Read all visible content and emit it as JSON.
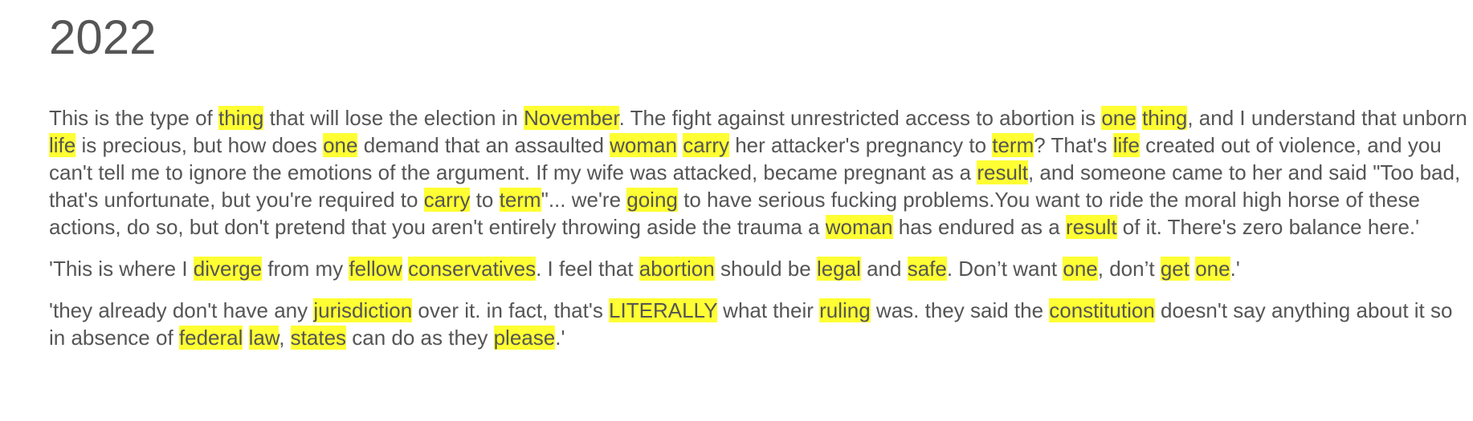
{
  "heading": "2022",
  "highlight_color": "#ffff33",
  "paragraphs": [
    [
      {
        "t": "This is the type of "
      },
      {
        "t": "thing",
        "hl": true
      },
      {
        "t": " that will lose the election in "
      },
      {
        "t": "November",
        "hl": true
      },
      {
        "t": ". The fight against unrestricted access to abortion is "
      },
      {
        "t": "one",
        "hl": true
      },
      {
        "t": " "
      },
      {
        "t": "thing",
        "hl": true
      },
      {
        "t": ", and I understand that unborn "
      },
      {
        "t": "life",
        "hl": true
      },
      {
        "t": " is precious, but how does "
      },
      {
        "t": "one",
        "hl": true
      },
      {
        "t": " demand that an assaulted "
      },
      {
        "t": "woman",
        "hl": true
      },
      {
        "t": " "
      },
      {
        "t": "carry",
        "hl": true
      },
      {
        "t": " her attacker's pregnancy to "
      },
      {
        "t": "term",
        "hl": true
      },
      {
        "t": "? That's "
      },
      {
        "t": "life",
        "hl": true
      },
      {
        "t": " created out of violence, and you can't tell me to ignore the emotions of the argument. If my wife was attacked, became pregnant as a "
      },
      {
        "t": "result",
        "hl": true
      },
      {
        "t": ", and someone came to her and said \"Too bad, that's unfortunate, but you're required to "
      },
      {
        "t": "carry",
        "hl": true
      },
      {
        "t": " to "
      },
      {
        "t": "term",
        "hl": true
      },
      {
        "t": "\"... we're "
      },
      {
        "t": "going",
        "hl": true
      },
      {
        "t": " to have serious fucking problems.You want to ride the moral high horse of these actions, do so, but don't pretend that you aren't entirely throwing aside the trauma a "
      },
      {
        "t": "woman",
        "hl": true
      },
      {
        "t": " has endured as a "
      },
      {
        "t": "result",
        "hl": true
      },
      {
        "t": " of it. There's zero balance here.'"
      }
    ],
    [
      {
        "t": "'This is where I "
      },
      {
        "t": "diverge",
        "hl": true
      },
      {
        "t": " from my "
      },
      {
        "t": "fellow",
        "hl": true
      },
      {
        "t": " "
      },
      {
        "t": "conservatives",
        "hl": true
      },
      {
        "t": ". I feel that "
      },
      {
        "t": "abortion",
        "hl": true
      },
      {
        "t": " should be "
      },
      {
        "t": "legal",
        "hl": true
      },
      {
        "t": " and "
      },
      {
        "t": "safe",
        "hl": true
      },
      {
        "t": ". Don’t want "
      },
      {
        "t": "one",
        "hl": true
      },
      {
        "t": ", don’t "
      },
      {
        "t": "get",
        "hl": true
      },
      {
        "t": " "
      },
      {
        "t": "one",
        "hl": true
      },
      {
        "t": ".'"
      }
    ],
    [
      {
        "t": "'they already don't have any "
      },
      {
        "t": "jurisdiction",
        "hl": true
      },
      {
        "t": " over it. in fact, that's "
      },
      {
        "t": "LITERALLY",
        "hl": true
      },
      {
        "t": " what their "
      },
      {
        "t": "ruling",
        "hl": true
      },
      {
        "t": " was. they said the "
      },
      {
        "t": "constitution",
        "hl": true
      },
      {
        "t": " doesn't say anything about it so in absence of "
      },
      {
        "t": "federal",
        "hl": true
      },
      {
        "t": " "
      },
      {
        "t": "law",
        "hl": true
      },
      {
        "t": ", "
      },
      {
        "t": "states",
        "hl": true
      },
      {
        "t": " can do as they "
      },
      {
        "t": "please",
        "hl": true
      },
      {
        "t": ".'"
      }
    ]
  ]
}
